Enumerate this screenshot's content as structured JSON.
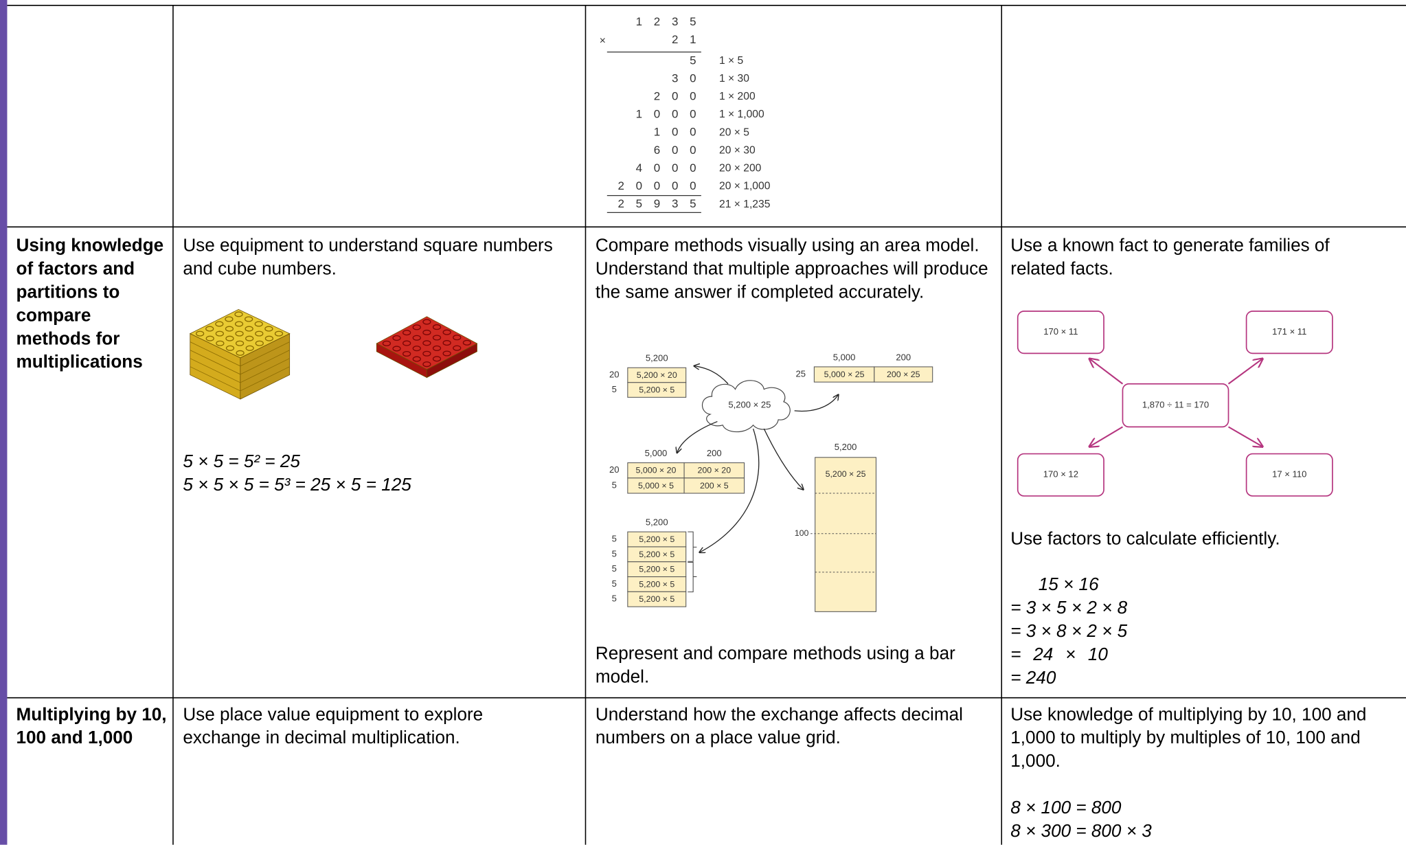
{
  "rows": [
    {
      "pictorial": {
        "long_multiplication": {
          "top": "1 2 3 5",
          "sign": "×",
          "multiplier": "2 1",
          "partials": [
            {
              "value": "5",
              "note": "1 × 5"
            },
            {
              "value": "3 0",
              "note": "1 × 30"
            },
            {
              "value": "2 0 0",
              "note": "1 × 200"
            },
            {
              "value": "1 0 0 0",
              "note": "1 × 1,000"
            },
            {
              "value": "1 0 0",
              "note": "20 × 5"
            },
            {
              "value": "6 0 0",
              "note": "20 × 30"
            },
            {
              "value": "4 0 0 0",
              "note": "20 × 200"
            },
            {
              "value": "2 0 0 0 0",
              "note": "20 × 1,000"
            }
          ],
          "total": {
            "value": "2 5 9 3 5",
            "note": "21 × 1,235"
          }
        }
      }
    },
    {
      "topic": "Using knowledge of factors and partitions to compare methods for multiplications",
      "concrete": {
        "text": "Use equipment to understand square numbers and cube numbers.",
        "equations": [
          "5 × 5 = 5² = 25",
          "5 × 5 × 5 = 5³ = 25 × 5 = 125"
        ]
      },
      "pictorial": {
        "text": "Compare methods visually using an area model. Understand that multiple approaches will produce the same answer if completed accurately.",
        "area_model": {
          "start": "5,200 × 25",
          "grid_a": {
            "columns": [
              "5,200"
            ],
            "rows": [
              {
                "label": "20",
                "cells": [
                  "5,200 × 20"
                ]
              },
              {
                "label": "5",
                "cells": [
                  "5,200 × 5"
                ]
              }
            ]
          },
          "grid_b": {
            "columns": [
              "5,000",
              "200"
            ],
            "rows": [
              {
                "label": "25",
                "cells": [
                  "5,000 × 25",
                  "200 × 25"
                ]
              }
            ]
          },
          "grid_c": {
            "columns": [
              "5,000",
              "200"
            ],
            "rows": [
              {
                "label": "20",
                "cells": [
                  "5,000 × 20",
                  "200 × 20"
                ]
              },
              {
                "label": "5",
                "cells": [
                  "5,000 × 5",
                  "200 × 5"
                ]
              }
            ]
          },
          "grid_d": {
            "columns": [
              "5,200"
            ],
            "rows": [
              {
                "label": "5",
                "cells": [
                  "5,200 × 5"
                ]
              },
              {
                "label": "5",
                "cells": [
                  "5,200 × 5"
                ]
              },
              {
                "label": "5",
                "cells": [
                  "5,200 × 5"
                ]
              },
              {
                "label": "5",
                "cells": [
                  "5,200 × 5"
                ]
              },
              {
                "label": "5",
                "cells": [
                  "5,200 × 5"
                ]
              }
            ]
          },
          "bar": {
            "header": "5,200",
            "label": "5,200 × 25",
            "mark": "100"
          }
        },
        "caption": "Represent and compare methods using a bar model."
      },
      "abstract": {
        "text": "Use a known fact to generate families of related facts.",
        "fact_family": {
          "center": "1,870 ÷ 11 = 170",
          "facts": [
            "170 × 11",
            "171 × 11",
            "170 × 12",
            "17 × 110"
          ]
        },
        "text2": "Use factors to calculate efficiently.",
        "steps": [
          "15 × 16",
          "= 3 × 5 × 2 × 8",
          "= 3 × 8 × 2 × 5",
          "= 24 × 10",
          "= 240"
        ]
      }
    },
    {
      "topic": "Multiplying by 10, 100 and 1,000",
      "concrete": {
        "text": "Use place value equipment to explore exchange in decimal multiplication."
      },
      "pictorial": {
        "text": "Understand how the exchange affects decimal numbers on a place value grid."
      },
      "abstract": {
        "text": "Use knowledge of multiplying by 10, 100 and 1,000 to multiply by multiples of 10, 100 and 1,000.",
        "equations": [
          "8 × 100 = 800",
          "8 × 300 = 800 × 3"
        ]
      }
    }
  ]
}
